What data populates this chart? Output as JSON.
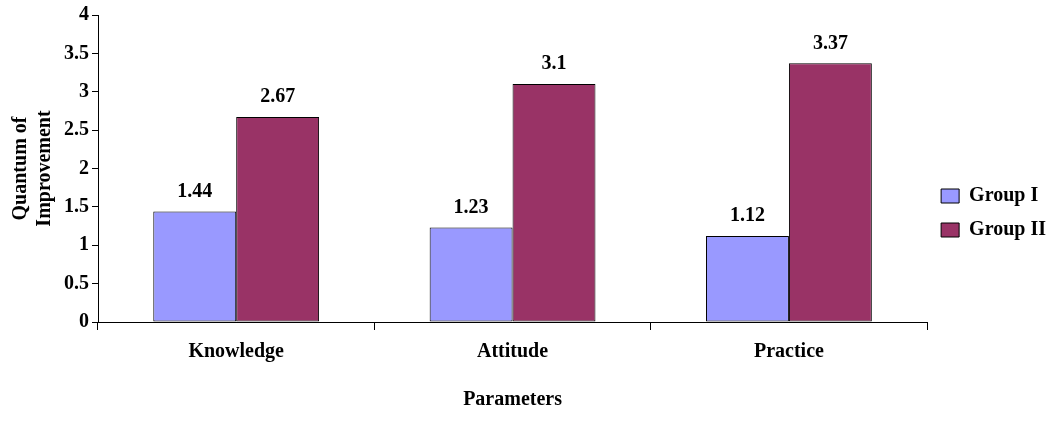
{
  "chart_data": {
    "type": "bar",
    "xlabel": "Parameters",
    "ylabel": "Quantum of Improvement",
    "categories": [
      "Knowledge",
      "Attitude",
      "Practice"
    ],
    "series": [
      {
        "name": "Group I",
        "color": "#9999ff",
        "values": [
          1.44,
          1.23,
          1.12
        ]
      },
      {
        "name": "Group II",
        "color": "#993366",
        "values": [
          2.67,
          3.1,
          3.37
        ]
      }
    ],
    "ylim": [
      0,
      4
    ],
    "yticks": [
      0,
      0.5,
      1,
      1.5,
      2,
      2.5,
      3,
      3.5,
      4
    ],
    "grid": false,
    "legend": "right",
    "data_labels": true
  }
}
